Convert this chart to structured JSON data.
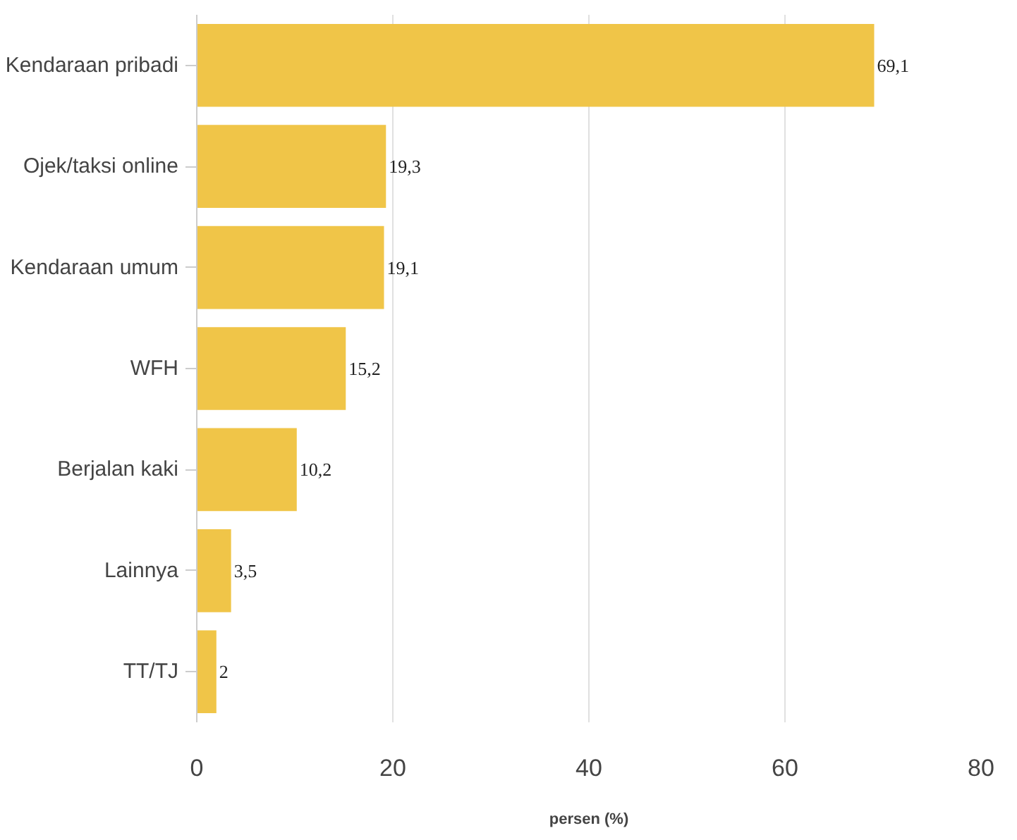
{
  "chart_data": {
    "type": "bar",
    "orientation": "horizontal",
    "xlabel": "persen (%)",
    "categories": [
      "Kendaraan pribadi",
      "Ojek/taksi online",
      "Kendaraan umum",
      "WFH",
      "Berjalan kaki",
      "Lainnya",
      "TT/TJ"
    ],
    "values": [
      69.1,
      19.3,
      19.1,
      15.2,
      10.2,
      3.5,
      2
    ],
    "value_labels": [
      "69,1",
      "19,3",
      "19,1",
      "15,2",
      "10,2",
      "3,5",
      "2"
    ],
    "color": "#f0c548",
    "xlim": [
      0,
      80
    ],
    "xticks": [
      0,
      20,
      40,
      60,
      80
    ],
    "grid": "x"
  }
}
